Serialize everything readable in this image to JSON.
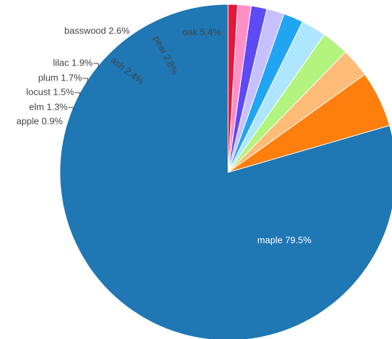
{
  "chart_data": {
    "type": "pie",
    "title": "",
    "categories": [
      "maple",
      "oak",
      "pear",
      "basswood",
      "ash",
      "lilac",
      "plum",
      "locust",
      "elm",
      "apple"
    ],
    "values": [
      79.5,
      5.4,
      2.8,
      2.6,
      2.4,
      1.9,
      1.7,
      1.5,
      1.3,
      0.9
    ],
    "value_suffix": "%",
    "colors": [
      "#1f77b4",
      "#ff7f0e",
      "#ffbb78",
      "#b3f47e",
      "#aee6ff",
      "#21a4f2",
      "#c7c0ff",
      "#5d4af5",
      "#ff8fc7",
      "#e6153a"
    ],
    "labels": [
      {
        "text": "maple 79.5%"
      },
      {
        "text": "oak 5.4%"
      },
      {
        "text": "pear 2.8%"
      },
      {
        "text": "basswood 2.6%"
      },
      {
        "text": "ash 2.4%"
      },
      {
        "text": "lilac 1.9%"
      },
      {
        "text": "plum 1.7%"
      },
      {
        "text": "locust 1.5%"
      },
      {
        "text": "elm 1.3%"
      },
      {
        "text": "apple 0.9%"
      }
    ],
    "direction": "counterclockwise",
    "start": "top",
    "legend": "none"
  }
}
